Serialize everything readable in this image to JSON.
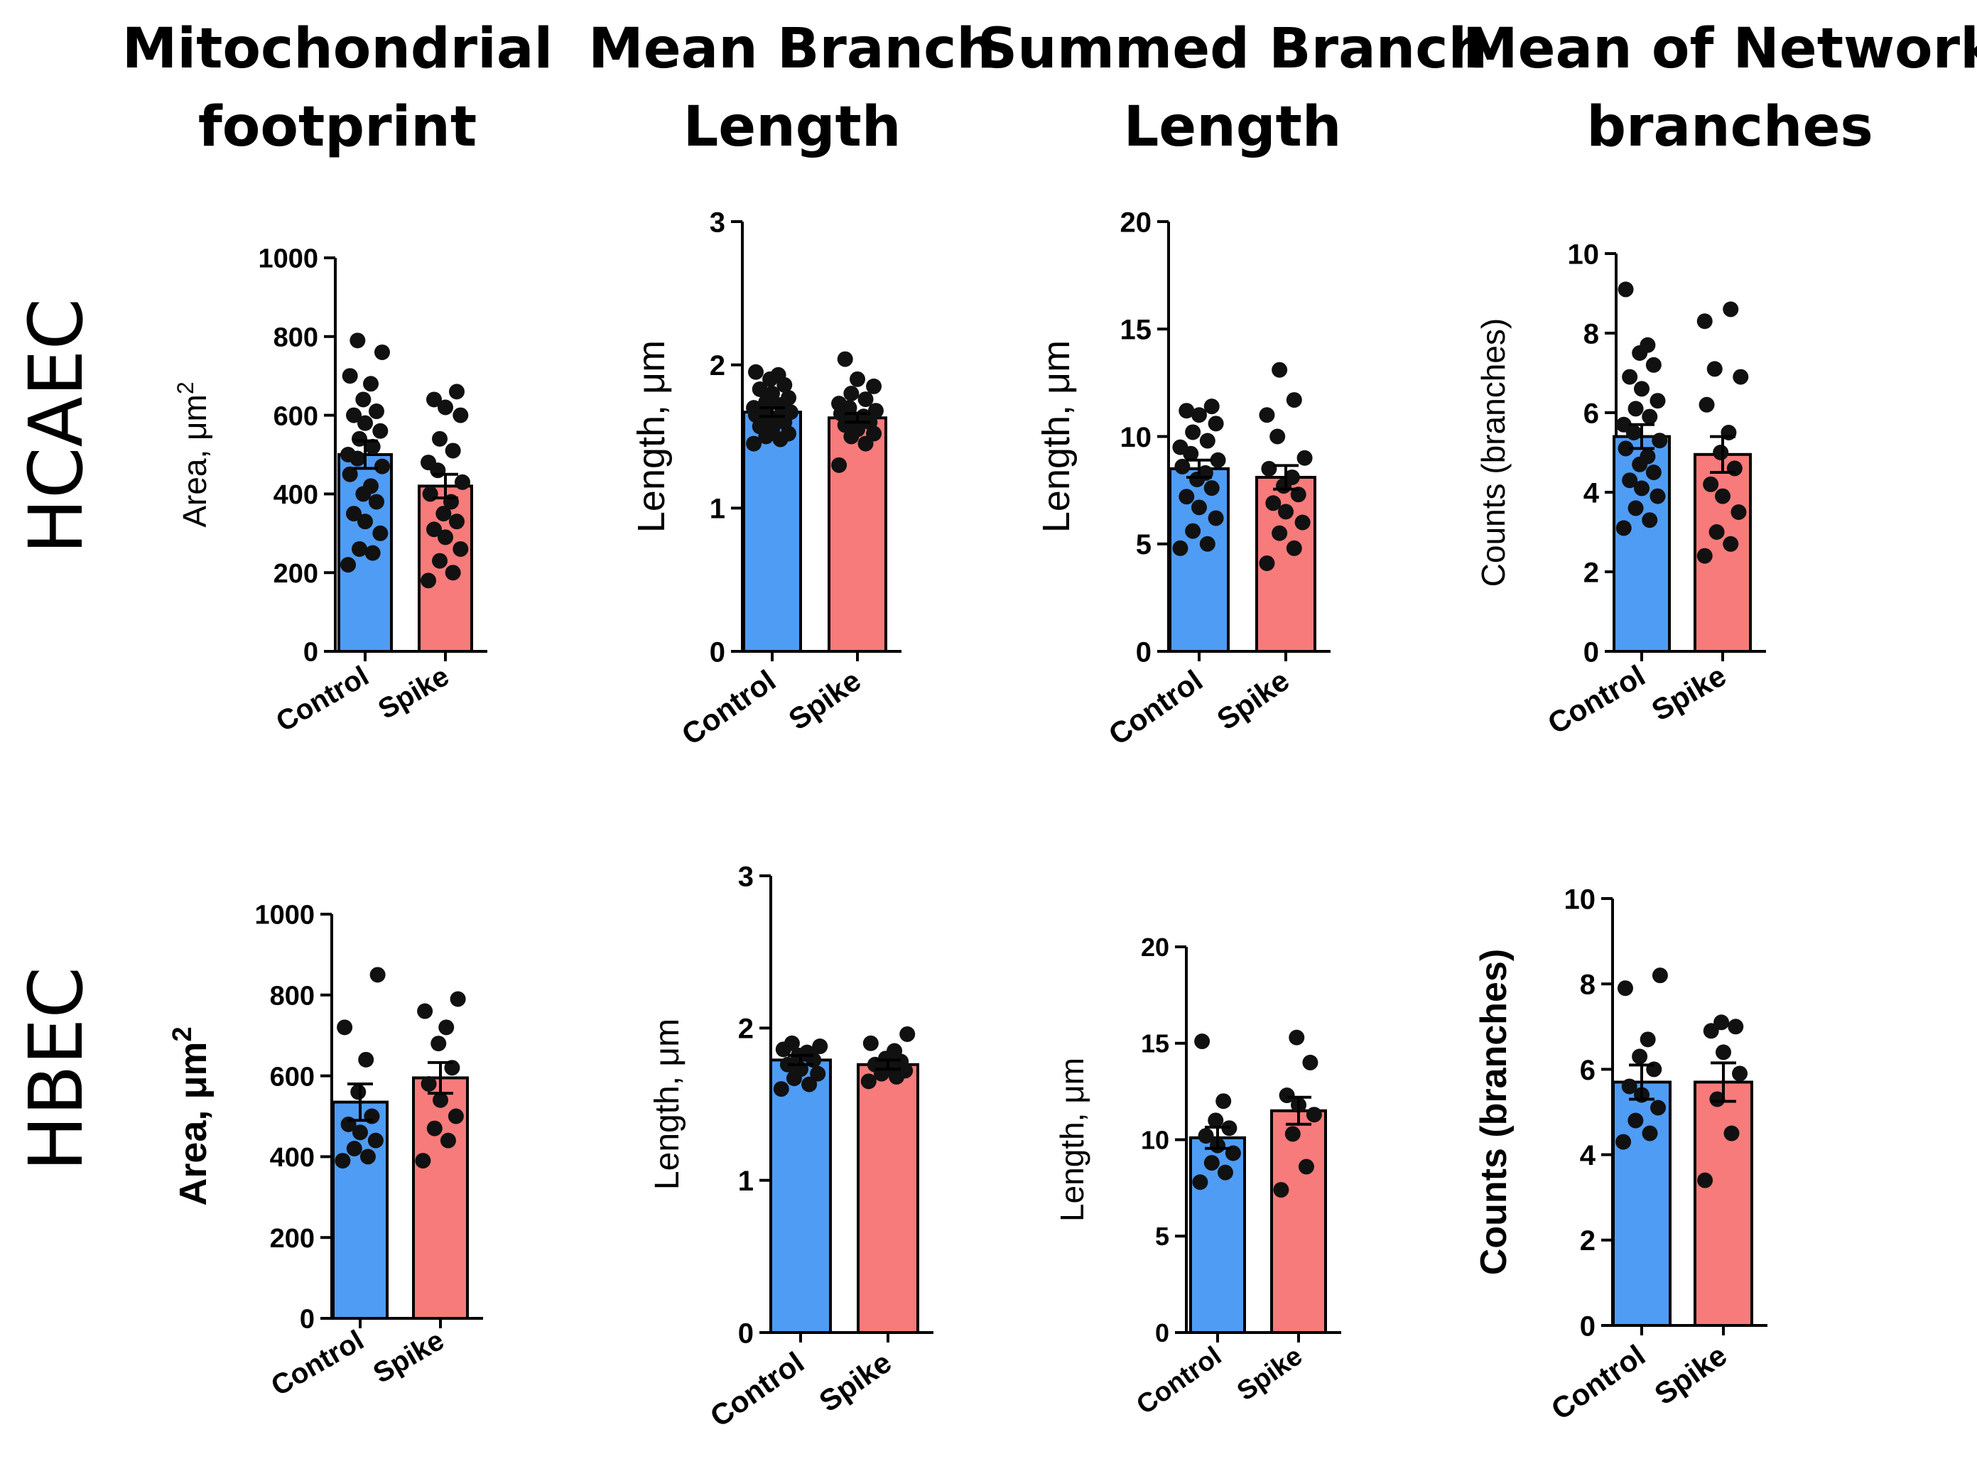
{
  "column_titles": [
    [
      "Mitochondrial",
      "footprint"
    ],
    [
      "Mean Branch",
      "Length"
    ],
    [
      "Summed Branch",
      "Length"
    ],
    [
      "Mean of Network",
      "branches"
    ]
  ],
  "row_titles": [
    "HCAEC",
    "HBEC"
  ],
  "colors": {
    "control": "#4f9cf5",
    "spike": "#f77b7b",
    "points": "#111111",
    "axis": "#000000"
  },
  "chart_data": [
    {
      "type": "bar",
      "panel": "HCAEC-footprint",
      "row": "HCAEC",
      "column": 0,
      "categories": [
        "Control",
        "Spike"
      ],
      "ylabel": "Area, μm",
      "ylabel_sup": "2",
      "ylim": [
        0,
        1000
      ],
      "yticks": [
        0,
        200,
        400,
        600,
        800,
        1000
      ],
      "means": [
        500,
        420
      ],
      "sem": [
        35,
        30
      ],
      "points": [
        [
          220,
          250,
          260,
          300,
          330,
          350,
          380,
          400,
          420,
          450,
          470,
          490,
          500,
          520,
          540,
          560,
          580,
          600,
          610,
          640,
          680,
          700,
          760,
          790
        ],
        [
          180,
          200,
          230,
          260,
          290,
          310,
          330,
          350,
          380,
          400,
          430,
          460,
          480,
          510,
          540,
          600,
          620,
          640,
          660
        ]
      ]
    },
    {
      "type": "bar",
      "panel": "HCAEC-mean-branch",
      "row": "HCAEC",
      "column": 1,
      "categories": [
        "Control",
        "Spike"
      ],
      "ylabel": "Length, μm",
      "ylim": [
        0,
        3
      ],
      "yticks": [
        0,
        1,
        2,
        3
      ],
      "means": [
        1.67,
        1.63
      ],
      "sem": [
        0.03,
        0.03
      ],
      "points": [
        [
          1.45,
          1.48,
          1.5,
          1.52,
          1.55,
          1.57,
          1.6,
          1.62,
          1.63,
          1.65,
          1.67,
          1.68,
          1.7,
          1.72,
          1.74,
          1.77,
          1.8,
          1.83,
          1.86,
          1.9,
          1.93,
          1.95
        ],
        [
          1.3,
          1.45,
          1.5,
          1.52,
          1.55,
          1.58,
          1.6,
          1.62,
          1.64,
          1.66,
          1.68,
          1.7,
          1.73,
          1.76,
          1.8,
          1.85,
          1.9,
          2.04
        ]
      ]
    },
    {
      "type": "bar",
      "panel": "HCAEC-summed-branch",
      "row": "HCAEC",
      "column": 2,
      "categories": [
        "Control",
        "Spike"
      ],
      "ylabel": "Length, μm",
      "ylim": [
        0,
        20
      ],
      "yticks": [
        0,
        5,
        10,
        15,
        20
      ],
      "means": [
        8.5,
        8.1
      ],
      "sem": [
        0.4,
        0.55
      ],
      "points": [
        [
          4.8,
          5.0,
          5.6,
          6.2,
          6.7,
          7.2,
          7.6,
          8.0,
          8.3,
          8.6,
          8.9,
          9.2,
          9.5,
          9.8,
          10.2,
          10.6,
          11.0,
          11.2,
          11.4
        ],
        [
          4.1,
          4.8,
          5.5,
          6.0,
          6.5,
          6.9,
          7.3,
          7.7,
          8.1,
          8.5,
          9.0,
          10.0,
          11.0,
          11.7,
          13.1
        ]
      ]
    },
    {
      "type": "bar",
      "panel": "HCAEC-network-branches",
      "row": "HCAEC",
      "column": 3,
      "categories": [
        "Control",
        "Spike"
      ],
      "ylabel": "Counts (branches)",
      "ylim": [
        0,
        10
      ],
      "yticks": [
        0,
        2,
        4,
        6,
        8,
        10
      ],
      "means": [
        5.4,
        4.95
      ],
      "sem": [
        0.3,
        0.45
      ],
      "points": [
        [
          3.1,
          3.3,
          3.6,
          3.9,
          4.1,
          4.3,
          4.5,
          4.7,
          4.9,
          5.1,
          5.3,
          5.5,
          5.7,
          5.9,
          6.1,
          6.3,
          6.6,
          6.9,
          7.2,
          7.5,
          7.7,
          9.1
        ],
        [
          2.4,
          2.7,
          3.0,
          3.5,
          3.9,
          4.2,
          4.6,
          5.0,
          5.5,
          6.2,
          6.9,
          7.1,
          8.3,
          8.6
        ]
      ]
    },
    {
      "type": "bar",
      "panel": "HBEC-footprint",
      "row": "HBEC",
      "column": 0,
      "categories": [
        "Control",
        "Spike"
      ],
      "ylabel": "Area, μm",
      "ylabel_sup": "2",
      "ylim": [
        0,
        1000
      ],
      "yticks": [
        0,
        200,
        400,
        600,
        800,
        1000
      ],
      "means": [
        535,
        595
      ],
      "sem": [
        45,
        38
      ],
      "points": [
        [
          390,
          400,
          420,
          440,
          460,
          480,
          500,
          560,
          640,
          720,
          850
        ],
        [
          390,
          440,
          470,
          500,
          540,
          580,
          620,
          680,
          720,
          760,
          790
        ]
      ]
    },
    {
      "type": "bar",
      "panel": "HBEC-mean-branch",
      "row": "HBEC",
      "column": 1,
      "categories": [
        "Control",
        "Spike"
      ],
      "ylabel": "Length, μm",
      "ylim": [
        0,
        3
      ],
      "yticks": [
        0,
        1,
        2,
        3
      ],
      "means": [
        1.79,
        1.76
      ],
      "sem": [
        0.03,
        0.03
      ],
      "points": [
        [
          1.6,
          1.63,
          1.67,
          1.7,
          1.73,
          1.76,
          1.79,
          1.82,
          1.84,
          1.86,
          1.88,
          1.9
        ],
        [
          1.65,
          1.68,
          1.7,
          1.72,
          1.74,
          1.76,
          1.78,
          1.8,
          1.85,
          1.9,
          1.96
        ]
      ]
    },
    {
      "type": "bar",
      "panel": "HBEC-summed-branch",
      "row": "HBEC",
      "column": 2,
      "categories": [
        "Control",
        "Spike"
      ],
      "ylabel": "Length, μm",
      "ylim": [
        0,
        20
      ],
      "yticks": [
        0,
        5,
        10,
        15,
        20
      ],
      "means": [
        10.1,
        11.5
      ],
      "sem": [
        0.55,
        0.7
      ],
      "points": [
        [
          7.8,
          8.3,
          8.8,
          9.3,
          9.7,
          10.2,
          10.6,
          11.0,
          12.0,
          15.1
        ],
        [
          7.4,
          8.6,
          10.3,
          11.3,
          11.8,
          12.3,
          14.0,
          15.3
        ]
      ]
    },
    {
      "type": "bar",
      "panel": "HBEC-network-branches",
      "row": "HBEC",
      "column": 3,
      "categories": [
        "Control",
        "Spike"
      ],
      "ylabel": "Counts (branches)",
      "ylim": [
        0,
        10
      ],
      "yticks": [
        0,
        2,
        4,
        6,
        8,
        10
      ],
      "means": [
        5.7,
        5.7
      ],
      "sem": [
        0.4,
        0.45
      ],
      "points": [
        [
          4.3,
          4.5,
          4.8,
          5.1,
          5.4,
          5.6,
          6.0,
          6.3,
          6.7,
          7.9,
          8.2
        ],
        [
          3.4,
          4.5,
          5.3,
          5.9,
          6.4,
          6.9,
          7.0,
          7.1
        ]
      ]
    }
  ]
}
